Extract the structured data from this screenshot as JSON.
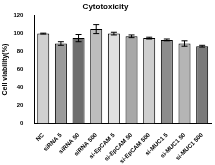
{
  "chart_data": {
    "type": "bar",
    "title": "Cytotoxicity",
    "y_label": "Cell viability(%)",
    "categories": [
      "NC",
      "siRNA 5",
      "siRNA 50",
      "siRNA 500",
      "si-EpCAM 5",
      "si-EpCAM 50",
      "si-EpCAM 500",
      "si-MUC1 5",
      "si-MUC1 50",
      "si-MUC1 500"
    ],
    "values": [
      100,
      89,
      95,
      105,
      100,
      97,
      95,
      93,
      89,
      86
    ],
    "errors": [
      0.5,
      2,
      4,
      5,
      1.5,
      1.5,
      1,
      1,
      3,
      1
    ],
    "colors": [
      "#d0d0d0",
      "#9a9a9a",
      "#6e6e6e",
      "#bdbdbd",
      "#e0e0e0",
      "#a8a8a8",
      "#cfcfcf",
      "#8c8c8c",
      "#b5b5b5",
      "#7a7a7a"
    ],
    "ylim": [
      0,
      120
    ],
    "yticks": [
      0,
      20,
      40,
      60,
      80,
      100,
      120
    ],
    "grid": false
  }
}
